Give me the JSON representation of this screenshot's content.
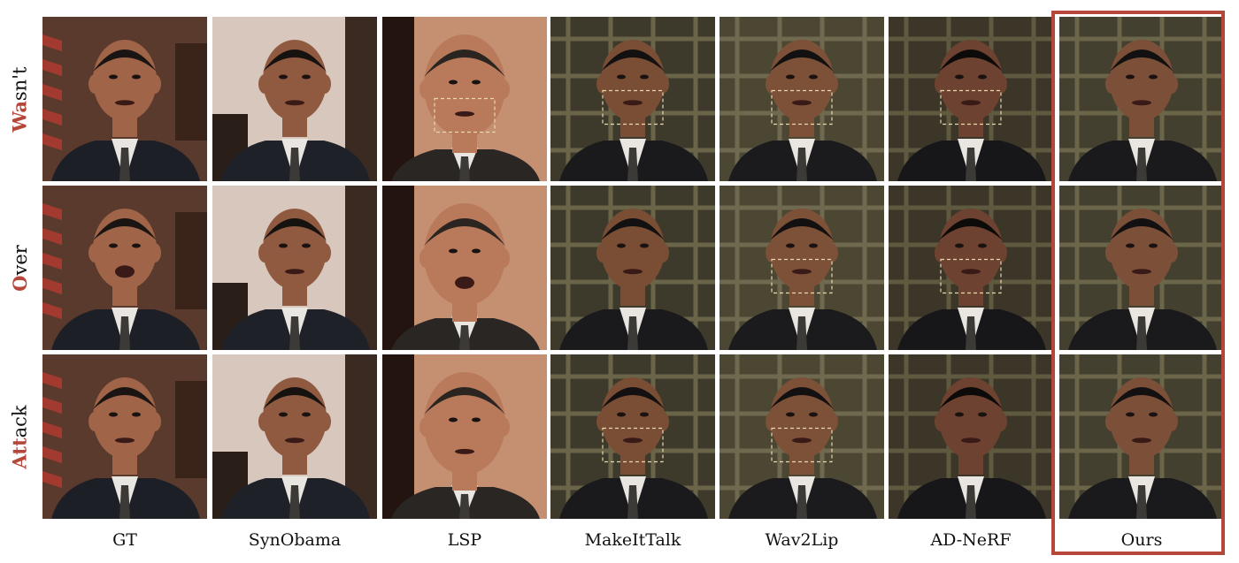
{
  "figure": {
    "rows": [
      {
        "highlight": "Wa",
        "rest": "sn't"
      },
      {
        "highlight": "O",
        "rest": "ver"
      },
      {
        "highlight": "Att",
        "rest": "ack"
      }
    ],
    "columns": [
      "GT",
      "SynObama",
      "LSP",
      "MakeItTalk",
      "Wav2Lip",
      "AD-NeRF",
      "Ours"
    ],
    "highlighted_column": "Ours",
    "accent_color": "#b5473a",
    "palettes": [
      {
        "bg": "#5a3a2c",
        "bg2": "#a33a2f",
        "skin": "#a06448",
        "suit": "#1d1f26",
        "hair": "#1a1512",
        "style": "flag"
      },
      {
        "bg": "#d8c7bd",
        "bg2": "#3a2a22",
        "skin": "#8f5a40",
        "suit": "#1e2128",
        "hair": "#151210",
        "style": "window"
      },
      {
        "bg": "#c58f72",
        "bg2": "#24140f",
        "skin": "#b97a5c",
        "suit": "#2a2623",
        "hair": "#2b2521",
        "style": "close"
      },
      {
        "bg": "#3e3a2b",
        "bg2": "#6a6448",
        "skin": "#7a4e35",
        "suit": "#1a1a1c",
        "hair": "#121010",
        "style": "grid"
      },
      {
        "bg": "#4c4733",
        "bg2": "#6f6950",
        "skin": "#7d5038",
        "suit": "#1b1b1d",
        "hair": "#121010",
        "style": "grid"
      },
      {
        "bg": "#3b3628",
        "bg2": "#5f5940",
        "skin": "#6e4230",
        "suit": "#17171a",
        "hair": "#0d0b0a",
        "style": "grid"
      },
      {
        "bg": "#434030",
        "bg2": "#6b6549",
        "skin": "#7c5038",
        "suit": "#1a1a1c",
        "hair": "#121010",
        "style": "grid"
      }
    ]
  }
}
